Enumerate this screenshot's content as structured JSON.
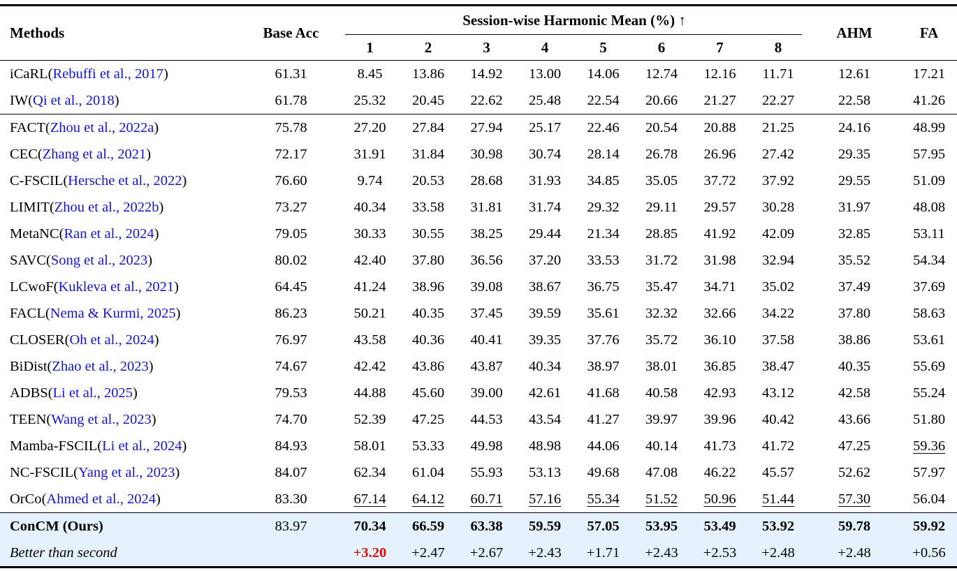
{
  "colors": {
    "citation_blue": "#1414d6",
    "delta_red": "#e20a0a",
    "highlight_bg": "#e4f2fb",
    "text": "#000000",
    "rule": "#000000"
  },
  "table": {
    "header": {
      "methods": "Methods",
      "base_acc": "Base Acc",
      "session_group": "Session-wise Harmonic Mean (%) ↑",
      "up_arrow_icon": "↑",
      "session_cols": [
        "1",
        "2",
        "3",
        "4",
        "5",
        "6",
        "7",
        "8"
      ],
      "ahm": "AHM",
      "fa": "FA"
    },
    "groups": [
      {
        "highlight": false,
        "rows": [
          {
            "name": "iCaRL",
            "cite": "Rebuffi et al., 2017",
            "base": "61.31",
            "vals": [
              "8.45",
              "13.86",
              "14.92",
              "13.00",
              "14.06",
              "12.74",
              "12.16",
              "11.71",
              "12.61",
              "17.21"
            ]
          },
          {
            "name": "IW",
            "cite": "Qi et al., 2018",
            "base": "61.78",
            "vals": [
              "25.32",
              "20.45",
              "22.62",
              "25.48",
              "22.54",
              "20.66",
              "21.27",
              "22.27",
              "22.58",
              "41.26"
            ]
          }
        ]
      },
      {
        "highlight": false,
        "rows": [
          {
            "name": "FACT",
            "cite": "Zhou et al., 2022a",
            "base": "75.78",
            "vals": [
              "27.20",
              "27.84",
              "27.94",
              "25.17",
              "22.46",
              "20.54",
              "20.88",
              "21.25",
              "24.16",
              "48.99"
            ]
          },
          {
            "name": "CEC",
            "cite": "Zhang et al., 2021",
            "base": "72.17",
            "vals": [
              "31.91",
              "31.84",
              "30.98",
              "30.74",
              "28.14",
              "26.78",
              "26.96",
              "27.42",
              "29.35",
              "57.95"
            ]
          },
          {
            "name": "C-FSCIL",
            "cite": "Hersche et al., 2022",
            "base": "76.60",
            "vals": [
              "9.74",
              "20.53",
              "28.68",
              "31.93",
              "34.85",
              "35.05",
              "37.72",
              "37.92",
              "29.55",
              "51.09"
            ]
          },
          {
            "name": "LIMIT",
            "cite": "Zhou et al., 2022b",
            "base": "73.27",
            "vals": [
              "40.34",
              "33.58",
              "31.81",
              "31.74",
              "29.32",
              "29.11",
              "29.57",
              "30.28",
              "31.97",
              "48.08"
            ]
          },
          {
            "name": "MetaNC",
            "cite": "Ran et al., 2024",
            "base": "79.05",
            "vals": [
              "30.33",
              "30.55",
              "38.25",
              "29.44",
              "21.34",
              "28.85",
              "41.92",
              "42.09",
              "32.85",
              "53.11"
            ]
          },
          {
            "name": "SAVC",
            "cite": "Song et al., 2023",
            "base": "80.02",
            "vals": [
              "42.40",
              "37.80",
              "36.56",
              "37.20",
              "33.53",
              "31.72",
              "31.98",
              "32.94",
              "35.52",
              "54.34"
            ]
          },
          {
            "name": "LCwoF",
            "cite": "Kukleva et al., 2021",
            "base": "64.45",
            "vals": [
              "41.24",
              "38.96",
              "39.08",
              "38.67",
              "36.75",
              "35.47",
              "34.71",
              "35.02",
              "37.49",
              "37.69"
            ]
          },
          {
            "name": "FACL",
            "cite": "Nema & Kurmi, 2025",
            "base": "86.23",
            "vals": [
              "50.21",
              "40.35",
              "37.45",
              "39.59",
              "35.61",
              "32.32",
              "32.66",
              "34.22",
              "37.80",
              "58.63"
            ]
          },
          {
            "name": "CLOSER",
            "cite": "Oh et al., 2024",
            "base": "76.97",
            "vals": [
              "43.58",
              "40.36",
              "40.41",
              "39.35",
              "37.76",
              "35.72",
              "36.10",
              "37.58",
              "38.86",
              "53.61"
            ]
          },
          {
            "name": "BiDist",
            "cite": "Zhao et al., 2023",
            "base": "74.67",
            "vals": [
              "42.42",
              "43.86",
              "43.87",
              "40.34",
              "38.97",
              "38.01",
              "36.85",
              "38.47",
              "40.35",
              "55.69"
            ]
          },
          {
            "name": "ADBS",
            "cite": "Li et al., 2025",
            "base": "79.53",
            "vals": [
              "44.88",
              "45.60",
              "39.00",
              "42.61",
              "41.68",
              "40.58",
              "42.93",
              "43.12",
              "42.58",
              "55.24"
            ]
          },
          {
            "name": "TEEN",
            "cite": "Wang et al., 2023",
            "base": "74.70",
            "vals": [
              "52.39",
              "47.25",
              "44.53",
              "43.54",
              "41.27",
              "39.97",
              "39.96",
              "40.42",
              "43.66",
              "51.80"
            ]
          },
          {
            "name": "Mamba-FSCIL",
            "cite": "Li et al., 2024",
            "base": "84.93",
            "vals": [
              "58.01",
              "53.33",
              "49.98",
              "48.98",
              "44.06",
              "40.14",
              "41.73",
              "41.72",
              "47.25",
              "59.36"
            ],
            "underline": [
              9
            ]
          },
          {
            "name": "NC-FSCIL",
            "cite": "Yang et al., 2023",
            "base": "84.07",
            "vals": [
              "62.34",
              "61.04",
              "55.93",
              "53.13",
              "49.68",
              "47.08",
              "46.22",
              "45.57",
              "52.62",
              "57.97"
            ]
          },
          {
            "name": "OrCo",
            "cite": "Ahmed et al., 2024",
            "base": "83.30",
            "vals": [
              "67.14",
              "64.12",
              "60.71",
              "57.16",
              "55.34",
              "51.52",
              "50.96",
              "51.44",
              "57.30",
              "56.04"
            ],
            "underline": [
              0,
              1,
              2,
              3,
              4,
              5,
              6,
              7,
              8
            ]
          }
        ]
      },
      {
        "highlight": true,
        "rows": [
          {
            "name": "ConCM (Ours)",
            "base": "83.97",
            "vals": [
              "70.34",
              "66.59",
              "63.38",
              "59.59",
              "57.05",
              "53.95",
              "53.49",
              "53.92",
              "59.78",
              "59.92"
            ],
            "bold": true
          },
          {
            "name": "Better than second",
            "base": "",
            "vals": [
              "+3.20",
              "+2.47",
              "+2.67",
              "+2.43",
              "+1.71",
              "+2.43",
              "+2.53",
              "+2.48",
              "+2.48",
              "+0.56"
            ],
            "italic": true,
            "red": [
              0
            ]
          }
        ]
      }
    ]
  }
}
